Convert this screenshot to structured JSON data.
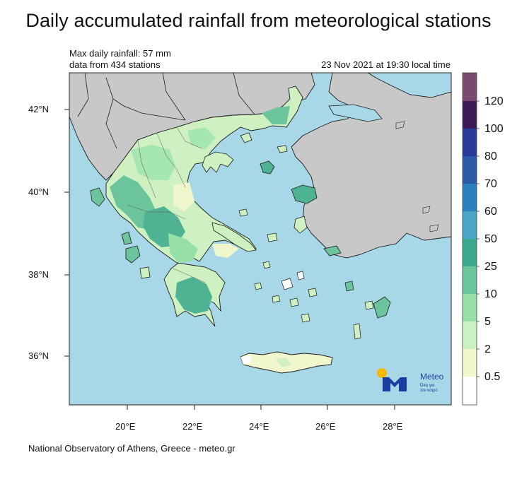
{
  "title": "Daily accumulated rainfall from meteorological stations",
  "info": {
    "max_line": "Max daily rainfall: 57 mm",
    "stations_line": "data from 434 stations",
    "timestamp": "23 Nov 2021 at 19:30 local time"
  },
  "map": {
    "lon_ticks": [
      "20°E",
      "22°E",
      "24°E",
      "26°E",
      "28°E"
    ],
    "lat_ticks": [
      "42°N",
      "40°N",
      "38°N",
      "36°N"
    ],
    "colors": {
      "sea": "#a8d8e8",
      "land_outside": "#c8c8c8",
      "border": "#1a1a1a"
    }
  },
  "legend": {
    "labels": [
      "120",
      "100",
      "80",
      "70",
      "60",
      "50",
      "25",
      "10",
      "5",
      "2",
      "0.5"
    ],
    "colors": [
      "#7a4a70",
      "#3d1a55",
      "#283a9a",
      "#2a5aa8",
      "#2a7fc0",
      "#4aa6c4",
      "#3aa88e",
      "#6cc49c",
      "#96dfa6",
      "#ccf2c2",
      "#f2f6cc",
      "#ffffff"
    ]
  },
  "logo": {
    "name": "Meteo",
    "tagline_1": "Όλα για",
    "tagline_2": "τον καιρό"
  },
  "footer": "National Observatory of Athens, Greece - meteo.gr"
}
